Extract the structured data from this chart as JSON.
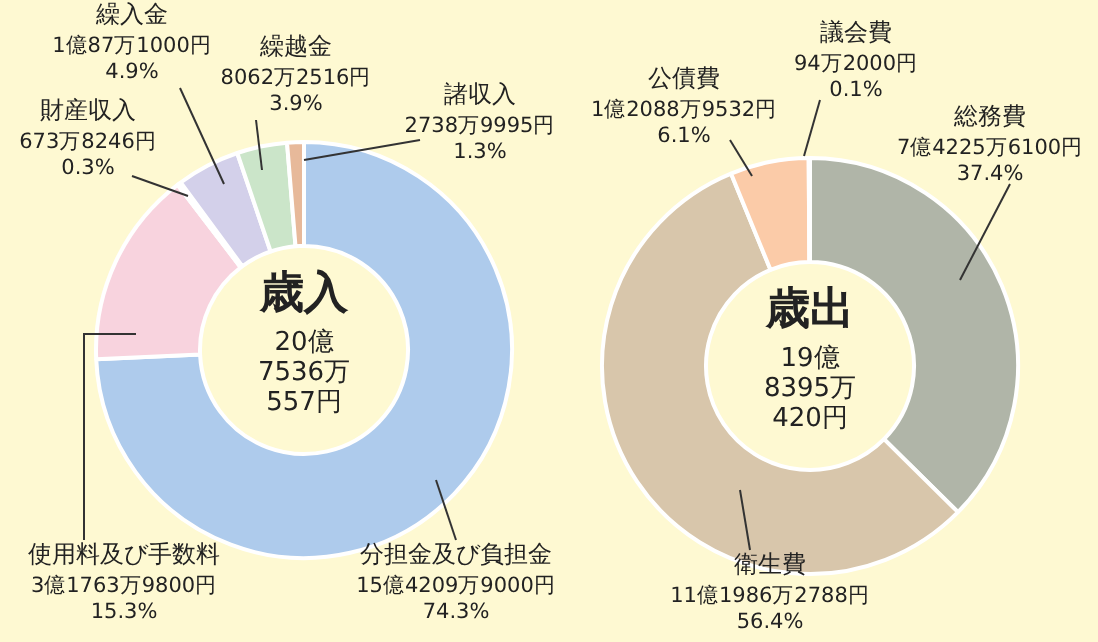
{
  "chart_data": [
    {
      "type": "donut",
      "title": "歳入",
      "subtitle": "20億\n7536万\n557円",
      "categories": [
        "分担金及び負担金",
        "使用料及び手数料",
        "財産収入",
        "繰入金",
        "繰越金",
        "諸収入"
      ],
      "values": [
        74.3,
        15.3,
        0.3,
        4.9,
        3.9,
        1.3
      ],
      "colors": [
        "#aecbec",
        "#f8d3de",
        "#f5ef6a",
        "#d3d0ea",
        "#cbe5c9",
        "#e7b99a"
      ],
      "value_labels": [
        "15億4209万9000円\n74.3%",
        "3億1763万9800円\n15.3%",
        "673万8246円\n0.3%",
        "1億87万1000円\n4.9%",
        "8062万2516円\n3.9%",
        "2738万9995円\n1.3%"
      ]
    },
    {
      "type": "donut",
      "title": "歳出",
      "subtitle": "19億\n8395万\n420円",
      "categories": [
        "総務費",
        "衛生費",
        "公債費",
        "議会費"
      ],
      "values": [
        37.4,
        56.4,
        6.1,
        0.1
      ],
      "colors": [
        "#b0b5a8",
        "#d8c6ab",
        "#fbcba8",
        "#f3a4ae"
      ],
      "value_labels": [
        "7億4225万6100円\n37.4%",
        "11億1986万2788円\n56.4%",
        "1億2088万9532円\n6.1%",
        "94万2000円\n0.1%"
      ]
    }
  ]
}
